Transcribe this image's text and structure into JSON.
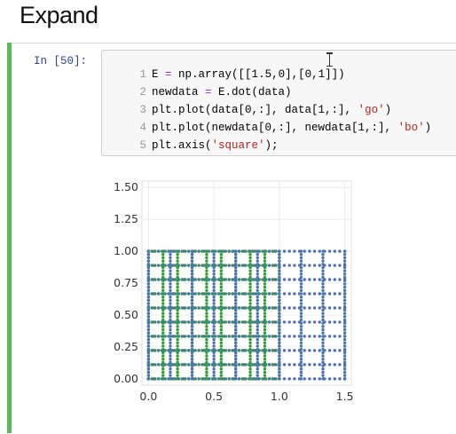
{
  "heading": "Expand",
  "cell": {
    "prompt": "In [50]:",
    "lines": [
      {
        "num": "1",
        "pre": "E ",
        "op": "=",
        "post": " np.array([[1.5,0],[0,1]])",
        "str": "",
        "end": ""
      },
      {
        "num": "2",
        "pre": "newdata ",
        "op": "=",
        "post": " E.dot(data)",
        "str": "",
        "end": ""
      },
      {
        "num": "3",
        "pre": "plt.plot(data[0,:], data[1,:], ",
        "op": "",
        "post": "",
        "str": "'go'",
        "end": ")"
      },
      {
        "num": "4",
        "pre": "plt.plot(newdata[0,:], newdata[1,:], ",
        "op": "",
        "post": "",
        "str": "'bo'",
        "end": ")"
      },
      {
        "num": "5",
        "pre": "plt.axis(",
        "op": "",
        "post": "",
        "str": "'square'",
        "end": ");"
      }
    ]
  },
  "chart_data": {
    "type": "scatter",
    "xlim": [
      -0.05,
      1.55
    ],
    "ylim": [
      -0.05,
      1.55
    ],
    "xticks": [
      "0.0",
      "0.5",
      "1.0",
      "1.5"
    ],
    "yticks": [
      "0.00",
      "0.25",
      "0.50",
      "0.75",
      "1.00",
      "1.25",
      "1.50"
    ],
    "grid": true,
    "series": [
      {
        "marker": "go",
        "color": "#2ca02c",
        "x_vertical_lines": [
          0,
          0.1111,
          0.2222,
          0.3333,
          0.4444,
          0.5556,
          0.6667,
          0.7778,
          0.8889,
          1.0
        ],
        "y_horizontal_lines": [
          0,
          0.1111,
          0.2222,
          0.3333,
          0.4444,
          0.5556,
          0.6667,
          0.7778,
          0.8889,
          1.0
        ],
        "points_per_line": 40
      },
      {
        "marker": "bo",
        "color": "#4c72b0",
        "x_vertical_lines": [
          0,
          0.1667,
          0.3333,
          0.5,
          0.6667,
          0.8333,
          1.0,
          1.1667,
          1.3333,
          1.5
        ],
        "y_horizontal_lines": [
          0,
          0.1111,
          0.2222,
          0.3333,
          0.4444,
          0.5556,
          0.6667,
          0.7778,
          0.8889,
          1.0
        ],
        "points_per_line": 40
      }
    ]
  }
}
